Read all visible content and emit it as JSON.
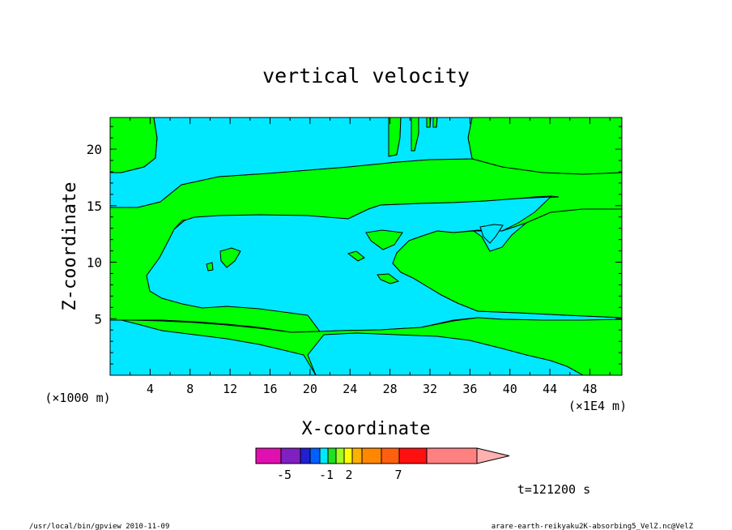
{
  "chart_data": {
    "type": "heatmap",
    "title": "vertical velocity",
    "xlabel": "X-coordinate",
    "ylabel": "Z-coordinate",
    "x_unit_left": "(×1000 m)",
    "x_unit_right": "(×1E4 m)",
    "x_ticks": [
      4,
      8,
      12,
      16,
      20,
      24,
      28,
      32,
      36,
      40,
      44,
      48
    ],
    "y_ticks": [
      5,
      10,
      15,
      20
    ],
    "xlim": [
      0,
      51.2
    ],
    "ylim": [
      0,
      22.8
    ],
    "colorbar": {
      "colors": [
        "#e010b0",
        "#8020c0",
        "#2020d0",
        "#0060ff",
        "#00e8ff",
        "#20e020",
        "#a0ff20",
        "#ffff00",
        "#ffb000",
        "#ff8800",
        "#ff6010",
        "#ff1010",
        "#ff8080",
        "#ffb0b0"
      ],
      "labels": [
        "-5",
        "-1",
        "2",
        "7"
      ]
    },
    "fill_colors": {
      "negative": "#00e8ff",
      "positive": "#00ff00"
    },
    "time_label": "t=121200 s"
  },
  "footer": {
    "left": "/usr/local/bin/gpview  2010-11-09",
    "right": "arare-earth-reikyaku2K-absorbing5_VelZ.nc@VelZ"
  }
}
